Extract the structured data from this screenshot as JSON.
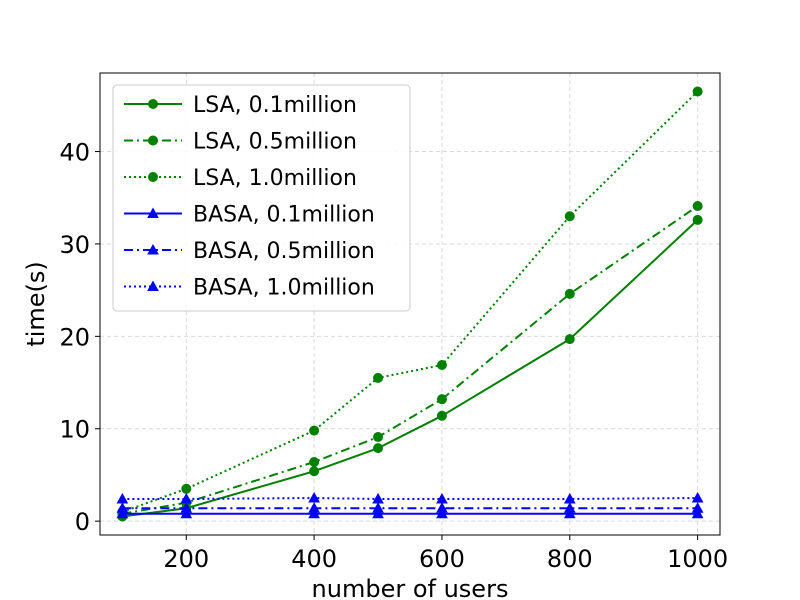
{
  "chart_data": {
    "type": "line",
    "title": "",
    "xlabel": "number of users",
    "ylabel": "time(s)",
    "xlim": [
      65,
      1035
    ],
    "ylim": [
      -1.5,
      48.5
    ],
    "xticks": [
      200,
      400,
      600,
      800,
      1000
    ],
    "yticks": [
      0,
      10,
      20,
      30,
      40
    ],
    "grid": true,
    "legend_position": "top-left",
    "x": [
      100,
      200,
      400,
      500,
      600,
      800,
      1000
    ],
    "series": [
      {
        "name": "LSA, 0.1million",
        "color": "#008000",
        "style": "solid",
        "marker": "circle",
        "values": [
          0.5,
          1.4,
          5.4,
          7.9,
          11.4,
          19.7,
          32.6
        ]
      },
      {
        "name": "LSA, 0.5million",
        "color": "#008000",
        "style": "dashdot",
        "marker": "circle",
        "values": [
          0.8,
          2.0,
          6.4,
          9.1,
          13.2,
          24.6,
          34.1
        ]
      },
      {
        "name": "LSA, 1.0million",
        "color": "#008000",
        "style": "dotted",
        "marker": "circle",
        "values": [
          1.0,
          3.5,
          9.8,
          15.5,
          16.9,
          33.0,
          46.5
        ]
      },
      {
        "name": "BASA, 0.1million",
        "color": "#0000ff",
        "style": "solid",
        "marker": "triangle",
        "values": [
          0.8,
          0.8,
          0.8,
          0.8,
          0.8,
          0.8,
          0.8
        ]
      },
      {
        "name": "BASA, 0.5million",
        "color": "#0000ff",
        "style": "dashdot",
        "marker": "triangle",
        "values": [
          1.4,
          1.4,
          1.4,
          1.4,
          1.4,
          1.4,
          1.4
        ]
      },
      {
        "name": "BASA, 1.0million",
        "color": "#0000ff",
        "style": "dotted",
        "marker": "triangle",
        "values": [
          2.4,
          2.4,
          2.5,
          2.4,
          2.4,
          2.4,
          2.5
        ]
      }
    ]
  }
}
